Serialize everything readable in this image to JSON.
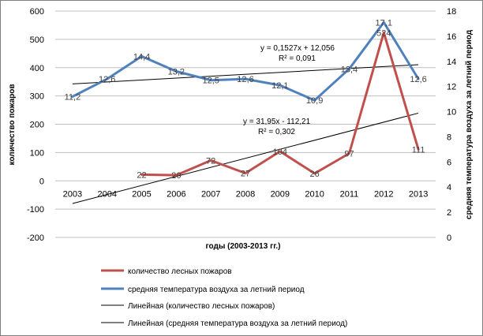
{
  "chart_data": {
    "type": "line",
    "title": "",
    "xlabel": "годы (2003-2013 гг.)",
    "ylabel": "количество пожаров",
    "y2label": "средняя температура воздуха за летний период",
    "ylim": [
      -200,
      600
    ],
    "y2lim": [
      0,
      18
    ],
    "yticks": [
      -200,
      -100,
      0,
      100,
      200,
      300,
      400,
      500,
      600
    ],
    "y2ticks": [
      0,
      2,
      4,
      6,
      8,
      10,
      12,
      14,
      16,
      18
    ],
    "categories": [
      "2003",
      "2004",
      "2005",
      "2006",
      "2007",
      "2008",
      "2009",
      "2010",
      "2011",
      "2012",
      "2013"
    ],
    "grid": true,
    "series": [
      {
        "name": "количество лесных пожаров",
        "axis": "left",
        "color": "#c0504d",
        "values": [
          null,
          null,
          22,
          20,
          72,
          27,
          104,
          26,
          97,
          524,
          111
        ],
        "labels": [
          "",
          "",
          "22",
          "20",
          "72",
          "27",
          "104",
          "26",
          "97",
          "524",
          "111"
        ]
      },
      {
        "name": "средняя температура воздуха за летний период",
        "axis": "right",
        "color": "#4f81bd",
        "values": [
          11.2,
          12.6,
          14.4,
          13.2,
          12.5,
          12.6,
          12.1,
          10.9,
          13.4,
          17.1,
          12.6
        ],
        "labels": [
          "11,2",
          "12,6",
          "14,4",
          "13,2",
          "12,5",
          "12,6",
          "12,1",
          "10,9",
          "13,4",
          "17,1",
          "12,6"
        ]
      }
    ],
    "trendlines": [
      {
        "name": "Линейная (количество лесных пожаров)",
        "axis": "left",
        "slope": 31.95,
        "intercept": -112.21,
        "equation": "y = 31,95x - 112,21",
        "r2": "R² = 0,302"
      },
      {
        "name": "Линейная (средняя температура воздуха за летний период)",
        "axis": "right",
        "slope": 0.1527,
        "intercept": 12.056,
        "equation": "y = 0,1527x + 12,056",
        "r2": "R² = 0,091"
      }
    ],
    "legend": {
      "position": "bottom",
      "items": [
        "количество лесных пожаров",
        "средняя температура воздуха за летний период",
        "Линейная (количество лесных пожаров)",
        "Линейная (средняя температура воздуха за летний период)"
      ]
    }
  }
}
